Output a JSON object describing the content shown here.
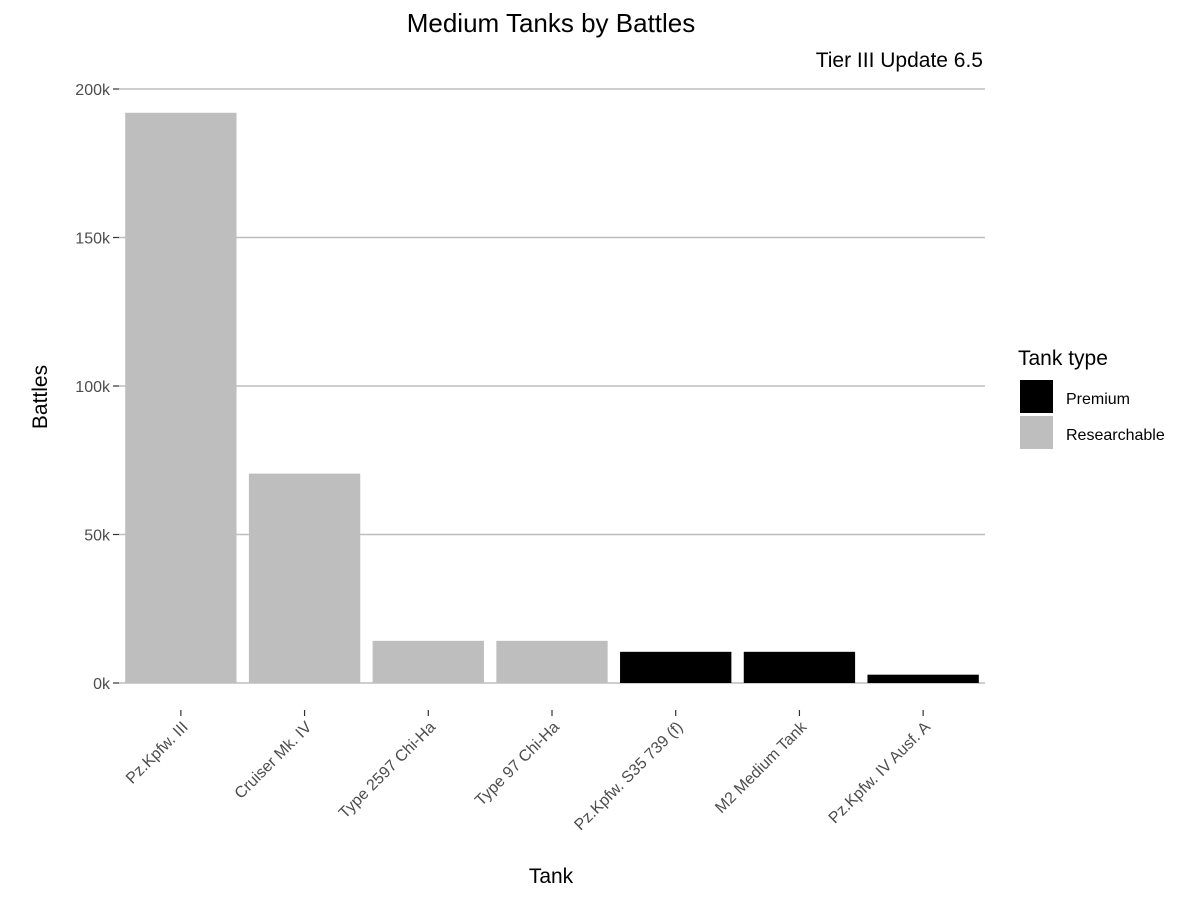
{
  "chart_data": {
    "type": "bar",
    "title": "Medium Tanks by Battles",
    "subtitle": "Tier III Update 6.5",
    "xlabel": "Tank",
    "ylabel": "Battles",
    "categories": [
      "Pz.Kpfw. III",
      "Cruiser Mk. IV",
      "Type 2597 Chi-Ha",
      "Type 97 Chi-Ha",
      "Pz.Kpfw. S35 739 (f)",
      "M2 Medium Tank",
      "Pz.Kpfw. IV Ausf. A"
    ],
    "values": [
      192000,
      70500,
      14200,
      14200,
      10500,
      10500,
      2800
    ],
    "tank_type": [
      "Researchable",
      "Researchable",
      "Researchable",
      "Researchable",
      "Premium",
      "Premium",
      "Premium"
    ],
    "ylim": [
      0,
      200000
    ],
    "yticks": [
      0,
      50000,
      100000,
      150000,
      200000
    ],
    "ytick_labels": [
      "0k",
      "50k",
      "100k",
      "150k",
      "200k"
    ],
    "grid": true,
    "legend": {
      "title": "Tank type",
      "placement": "right",
      "entries": [
        {
          "label": "Premium",
          "color": "#000000"
        },
        {
          "label": "Researchable",
          "color": "#bebebe"
        }
      ]
    },
    "colors": {
      "Premium": "#000000",
      "Researchable": "#bebebe",
      "grid": "#bebebe"
    }
  }
}
